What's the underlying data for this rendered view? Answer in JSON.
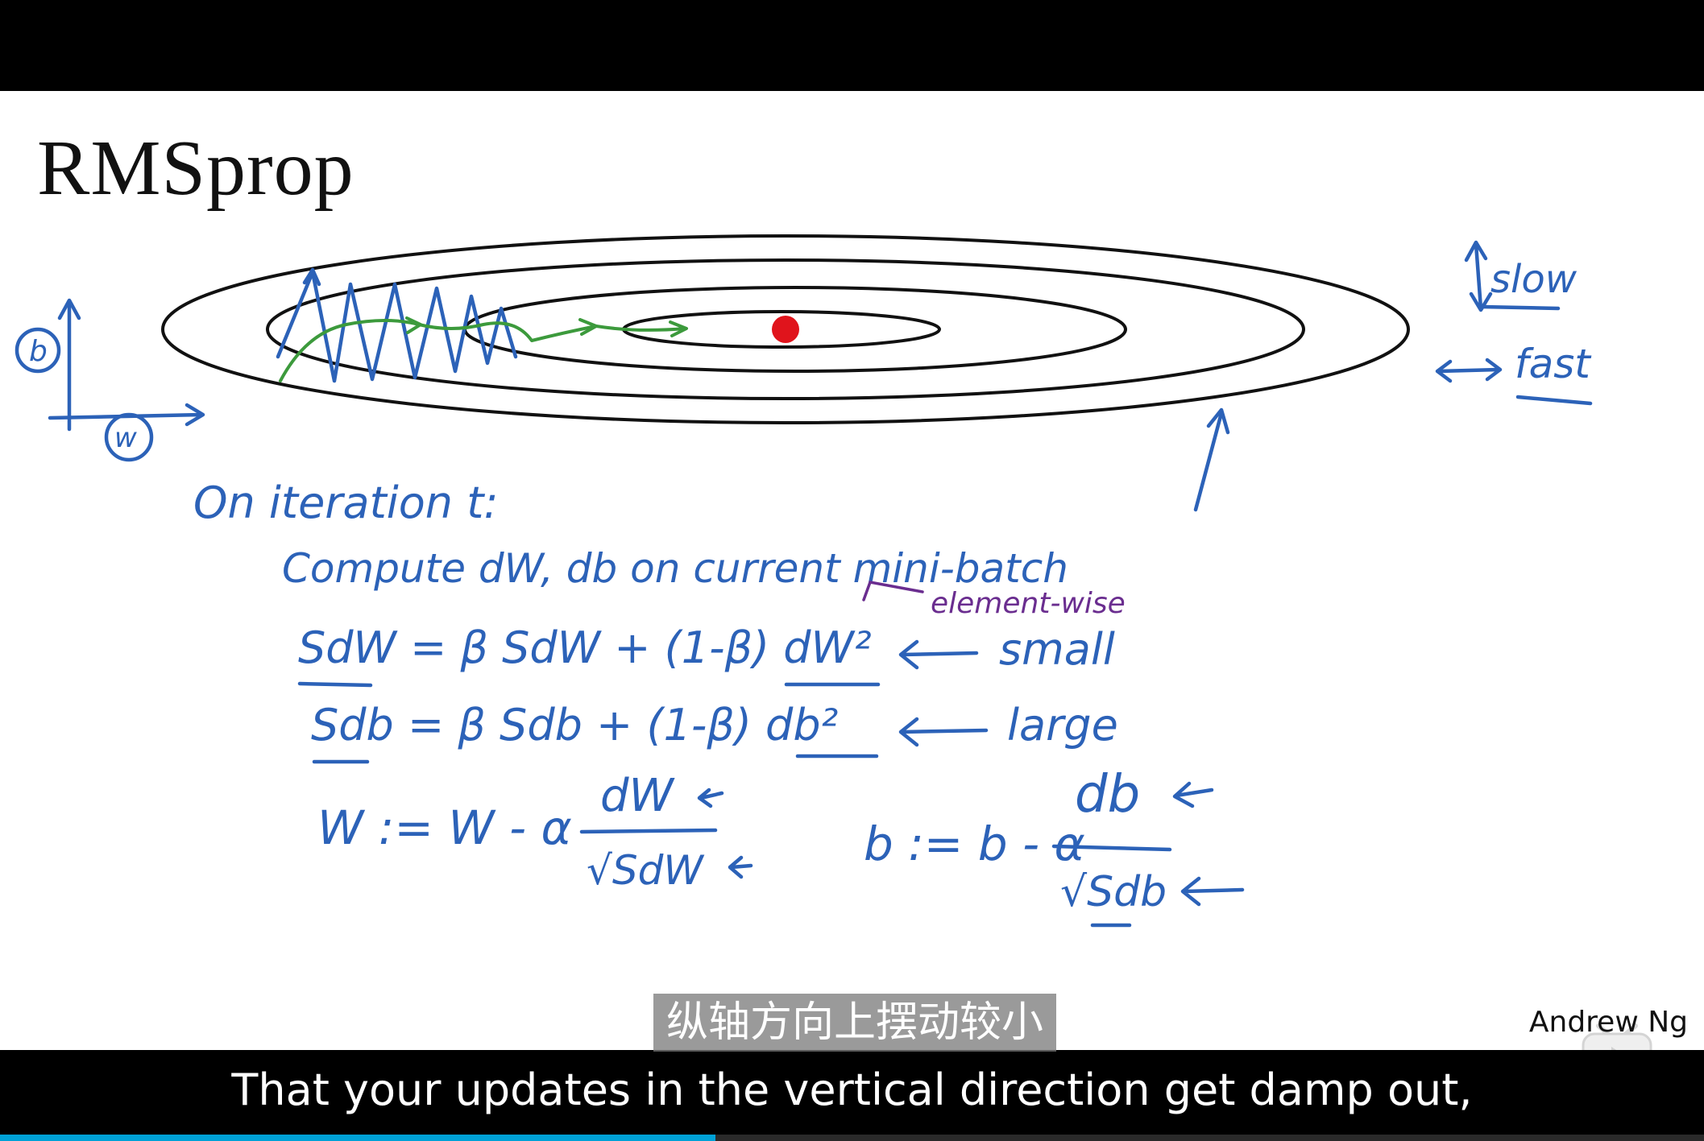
{
  "slide": {
    "title": "RMSprop",
    "presenter": "Andrew Ng",
    "notes": {
      "axis_b": "b",
      "axis_w": "w",
      "slow": "slow",
      "fast": "fast",
      "iteration": "On iteration t:",
      "compute": "Compute dW, db on current mini-batch",
      "element_wise": "element-wise",
      "eq_sdw": "SdW = β SdW + (1-β) dW²",
      "small": "small",
      "eq_sdb": "Sdb = β Sdb + (1-β) db²",
      "large": "large",
      "update_w_lhs": "W := W - α",
      "update_w_num": "dW",
      "update_w_den": "√SdW",
      "update_b_lhs": "b := b - α",
      "update_b_num": "db",
      "update_b_den": "√Sdb"
    }
  },
  "subtitles": {
    "chinese": "纵轴方向上摆动较小",
    "english": "That your updates in the vertical direction get damp out,"
  },
  "playback": {
    "progress": 0.42
  },
  "colors": {
    "ink_blue": "#2c62b8",
    "ink_green": "#3c9a3c",
    "ink_purple": "#6a2d8f",
    "minimum_dot": "#e0141c"
  },
  "icons": {
    "logo": "play-logo-icon"
  }
}
